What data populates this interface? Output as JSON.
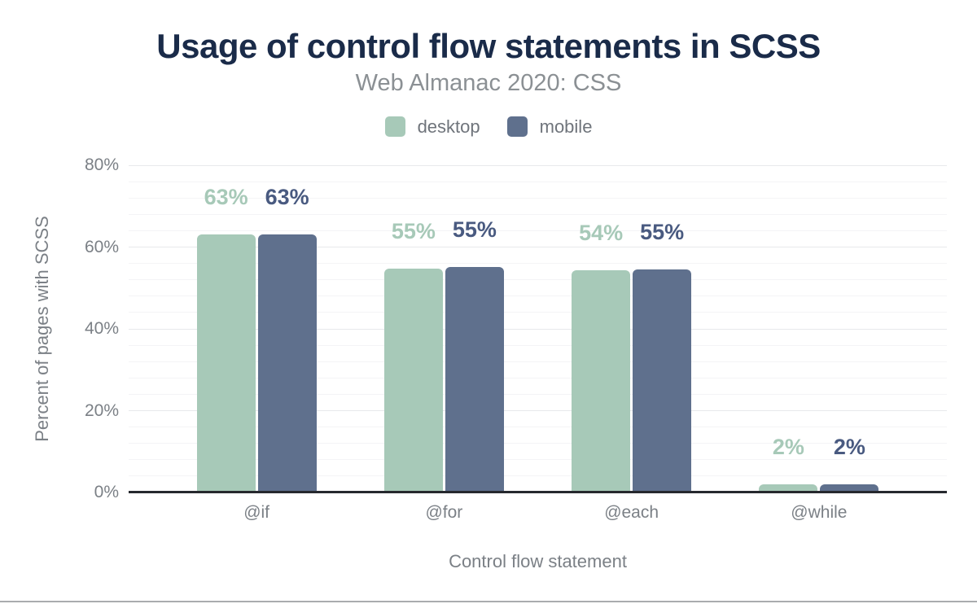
{
  "chart_data": {
    "type": "bar",
    "title": "Usage of control flow statements in SCSS",
    "subtitle": "Web Almanac 2020: CSS",
    "xlabel": "Control flow statement",
    "ylabel": "Percent of pages with SCSS",
    "categories": [
      "@if",
      "@for",
      "@each",
      "@while"
    ],
    "series": [
      {
        "name": "desktop",
        "color": "#a7c9b8",
        "label_color": "#a7c9b8",
        "values": [
          63,
          54.8,
          54.3,
          2
        ],
        "labels": [
          "63%",
          "55%",
          "54%",
          "2%"
        ]
      },
      {
        "name": "mobile",
        "color": "#5f708d",
        "label_color": "#495a80",
        "values": [
          63,
          55.2,
          54.5,
          2
        ],
        "labels": [
          "63%",
          "55%",
          "55%",
          "2%"
        ]
      }
    ],
    "ylim": [
      0,
      80
    ],
    "yticks": [
      {
        "value": 0,
        "label": "0%"
      },
      {
        "value": 20,
        "label": "20%"
      },
      {
        "value": 40,
        "label": "40%"
      },
      {
        "value": 60,
        "label": "60%"
      },
      {
        "value": 80,
        "label": "80%"
      }
    ],
    "minor_grid_step": 4,
    "major_grid_step": 20,
    "grid": true,
    "legend_position": "top"
  },
  "colors": {
    "title_text": "#1a2b49",
    "subtitle_text": "#8b9094",
    "axis_text": "#7b8086",
    "axis_line": "#26292e",
    "grid_minor": "#f4f4f6",
    "grid_major": "#e8e9ec",
    "page_divider": "#aaacae",
    "background": "#ffffff"
  }
}
